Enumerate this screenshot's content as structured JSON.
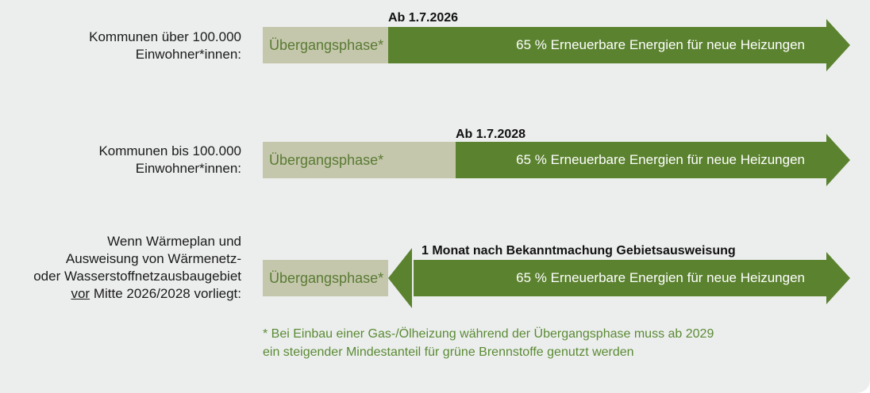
{
  "rows": [
    {
      "label_lines": [
        "Kommunen über 100.000",
        "Einwohner*innen:"
      ],
      "phase": "Übergangsphase*",
      "start": "Ab 1.7.2026",
      "bar": "65 % Erneuerbare Energien für neue Heizungen"
    },
    {
      "label_lines": [
        "Kommunen bis 100.000",
        "Einwohner*innen:"
      ],
      "phase": "Übergangsphase*",
      "start": "Ab 1.7.2028",
      "bar": "65 % Erneuerbare Energien für neue Heizungen"
    },
    {
      "label_lines": [
        "Wenn Wärmeplan und",
        "Ausweisung von Wärmenetz-",
        "oder Wasserstoffnetzausbaugebiet"
      ],
      "label_last_underlined": "vor",
      "label_last_rest": " Mitte 2026/2028 vorliegt:",
      "phase": "Übergangsphase*",
      "start": "1 Monat nach Bekanntmachung Gebietsausweisung",
      "bar": "65 % Erneuerbare Energien für neue Heizungen"
    }
  ],
  "footnote_lines": [
    "* Bei Einbau einer Gas-/Ölheizung während der Übergangsphase muss ab 2029",
    "ein steigender Mindestanteil für grüne Brennstoffe genutzt werden"
  ],
  "colors": {
    "panel": "#eceeed",
    "phase_fill": "#c4c7ab",
    "phase_text": "#5a7a34",
    "bar_fill": "#5b822f",
    "footnote_text": "#5a8a34"
  }
}
